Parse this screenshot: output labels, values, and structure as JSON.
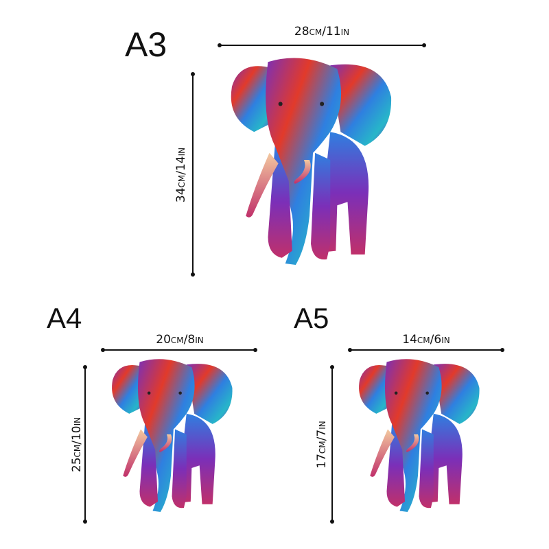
{
  "variants": [
    {
      "size": "A3",
      "width_label": "28cm/11in",
      "height_label": "34cm/14in"
    },
    {
      "size": "A4",
      "width_label": "20cm/8in",
      "height_label": "25cm/10in"
    },
    {
      "size": "A5",
      "width_label": "14cm/6in",
      "height_label": "17cm/7in"
    }
  ],
  "colors": {
    "text": "#111111",
    "palette": [
      "#e23a2a",
      "#7b2fb8",
      "#2f7fe0",
      "#27b6c9",
      "#f0a030",
      "#c0306a"
    ]
  }
}
